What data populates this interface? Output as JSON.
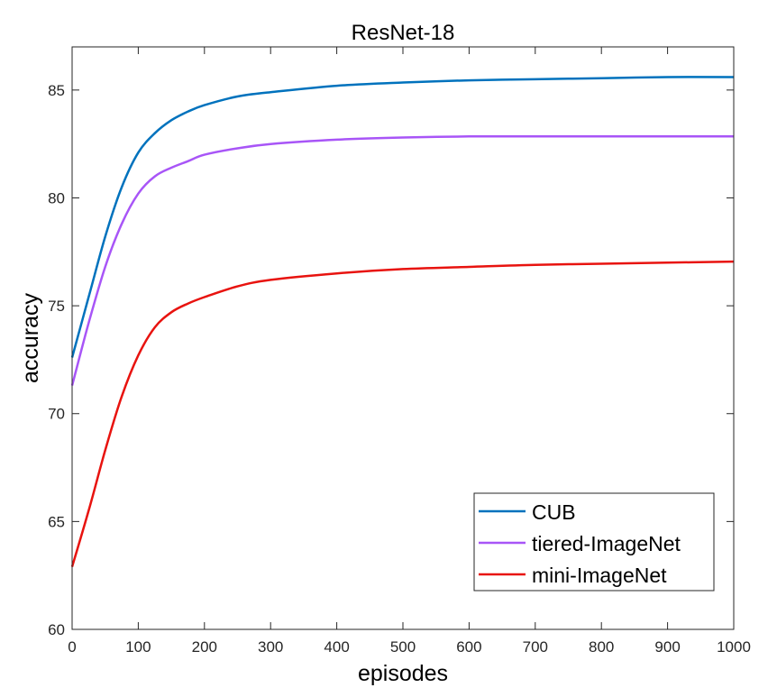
{
  "chart_data": {
    "type": "line",
    "title": "ResNet-18",
    "xlabel": "episodes",
    "ylabel": "accuracy",
    "xlim": [
      0,
      1000
    ],
    "ylim": [
      60,
      87
    ],
    "xticks": [
      0,
      100,
      200,
      300,
      400,
      500,
      600,
      700,
      800,
      900,
      1000
    ],
    "yticks": [
      60,
      65,
      70,
      75,
      80,
      85
    ],
    "grid": false,
    "legend_position": "bottom-right",
    "series": [
      {
        "name": "CUB",
        "color": "#0072BD",
        "x": [
          0,
          25,
          50,
          75,
          100,
          125,
          150,
          175,
          200,
          250,
          300,
          400,
          500,
          600,
          700,
          800,
          900,
          1000
        ],
        "y": [
          72.6,
          75.4,
          78.2,
          80.5,
          82.1,
          83.0,
          83.6,
          84.0,
          84.3,
          84.7,
          84.9,
          85.2,
          85.35,
          85.45,
          85.5,
          85.55,
          85.6,
          85.6
        ]
      },
      {
        "name": "tiered-ImageNet",
        "color": "#A855F7",
        "x": [
          0,
          25,
          50,
          75,
          100,
          125,
          150,
          175,
          200,
          250,
          300,
          400,
          500,
          600,
          700,
          800,
          900,
          1000
        ],
        "y": [
          71.3,
          74.2,
          76.8,
          78.8,
          80.2,
          81.0,
          81.4,
          81.7,
          82.0,
          82.3,
          82.5,
          82.7,
          82.8,
          82.85,
          82.85,
          82.85,
          82.85,
          82.85
        ]
      },
      {
        "name": "mini-ImageNet",
        "color": "#E8130F",
        "x": [
          0,
          25,
          50,
          75,
          100,
          125,
          150,
          175,
          200,
          250,
          300,
          400,
          500,
          600,
          700,
          800,
          900,
          1000
        ],
        "y": [
          62.9,
          65.5,
          68.3,
          70.8,
          72.7,
          74.0,
          74.7,
          75.1,
          75.4,
          75.9,
          76.2,
          76.5,
          76.7,
          76.8,
          76.9,
          76.95,
          77.0,
          77.05
        ]
      }
    ]
  }
}
